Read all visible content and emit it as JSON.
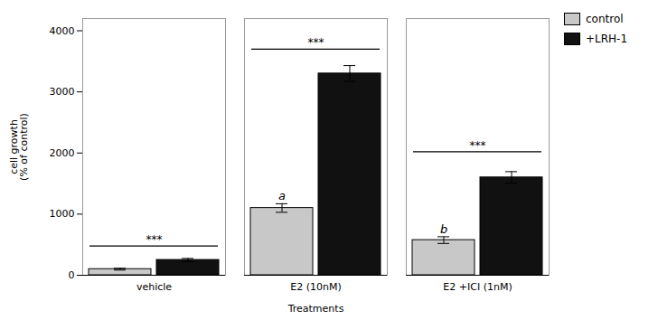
{
  "chart_data": {
    "type": "bar",
    "categories": [
      "vehicle",
      "E2 (10nM)",
      "E2 +ICI (1nM)"
    ],
    "series": [
      {
        "name": "control",
        "color": "#c8c8c8",
        "values": [
          100,
          1100,
          575
        ],
        "errors": [
          15,
          70,
          55
        ]
      },
      {
        "name": "+LRH-1",
        "color": "#111111",
        "values": [
          250,
          3300,
          1600
        ],
        "errors": [
          25,
          130,
          95
        ]
      }
    ],
    "xlabel": "Treatments",
    "ylabel": "cell growth\n(% of control)",
    "ylim": [
      0,
      4200
    ],
    "yticks": [
      0,
      1000,
      2000,
      3000,
      4000
    ],
    "legend": "right",
    "annotations": [
      {
        "text": "***",
        "category": "vehicle",
        "y": 480
      },
      {
        "text": "***",
        "category": "E2 (10nM)",
        "y": 3700
      },
      {
        "text": "***",
        "category": "E2 +ICI (1nM)",
        "y": 2020
      }
    ],
    "letters": [
      {
        "text": "a",
        "category": "E2 (10nM)",
        "series": "control",
        "y": 1200
      },
      {
        "text": "b",
        "category": "E2 +ICI (1nM)",
        "series": "control",
        "y": 660
      }
    ]
  }
}
